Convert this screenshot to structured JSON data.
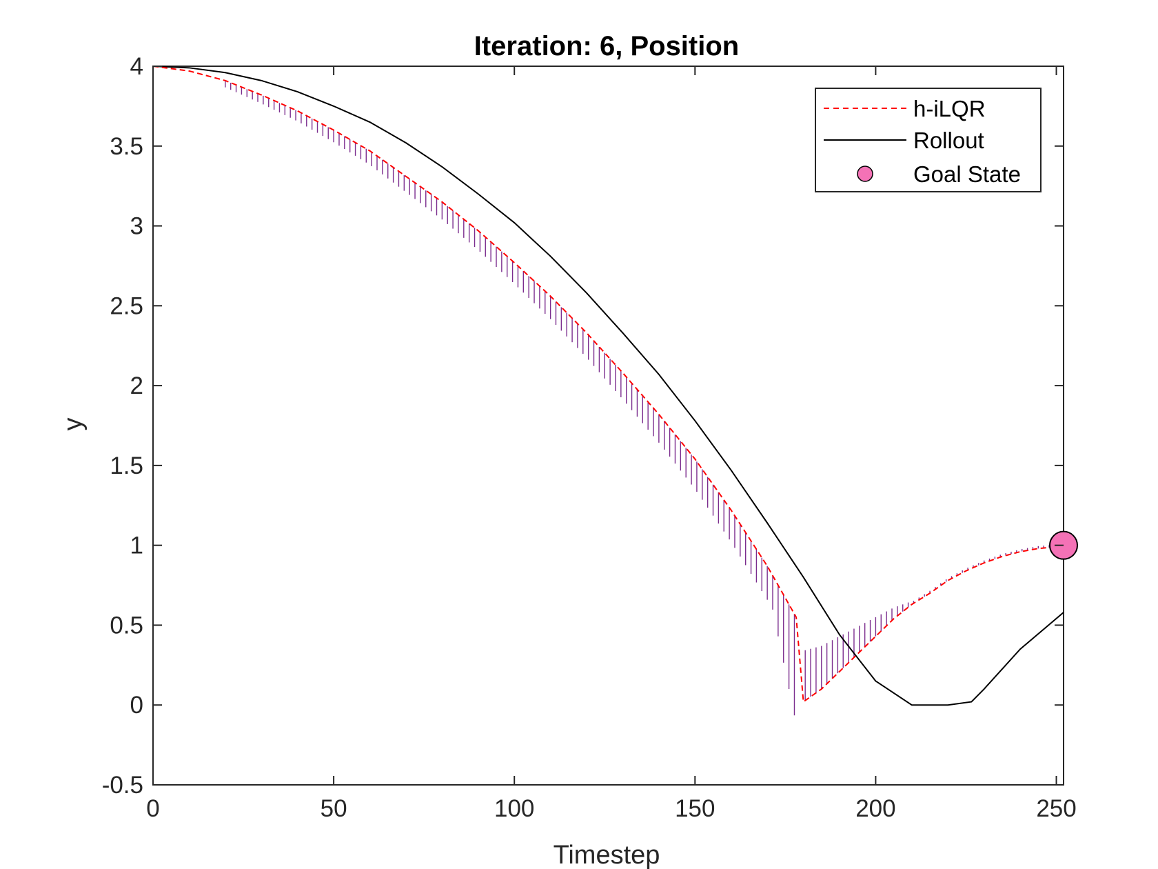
{
  "chart_data": {
    "type": "line",
    "title": "Iteration: 6, Position",
    "xlabel": "Timestep",
    "ylabel": "y",
    "xlim": [
      0,
      252
    ],
    "ylim": [
      -0.5,
      4
    ],
    "xticks": [
      0,
      50,
      100,
      150,
      200,
      250
    ],
    "yticks": [
      -0.5,
      0,
      0.5,
      1,
      1.5,
      2,
      2.5,
      3,
      3.5,
      4
    ],
    "ytick_labels": [
      "-0.5",
      "0",
      "0.5",
      "1",
      "1.5",
      "2",
      "2.5",
      "3",
      "3.5",
      "4"
    ],
    "legend_position": "top-right",
    "grid": false,
    "series": [
      {
        "name": "h-iLQR",
        "style": "dashed",
        "color": "#ff0000",
        "x": [
          0,
          10,
          20,
          30,
          40,
          50,
          60,
          70,
          80,
          90,
          100,
          110,
          120,
          130,
          140,
          150,
          160,
          170,
          178,
          180,
          185,
          190,
          195,
          200,
          205,
          210,
          215,
          220,
          225,
          230,
          235,
          240,
          245,
          250,
          252
        ],
        "y": [
          4.0,
          3.97,
          3.91,
          3.82,
          3.72,
          3.6,
          3.47,
          3.31,
          3.15,
          2.97,
          2.77,
          2.56,
          2.33,
          2.08,
          1.82,
          1.54,
          1.22,
          0.87,
          0.55,
          0.02,
          0.1,
          0.21,
          0.32,
          0.43,
          0.54,
          0.63,
          0.7,
          0.78,
          0.84,
          0.89,
          0.93,
          0.96,
          0.98,
          0.99,
          1.0
        ]
      },
      {
        "name": "Rollout",
        "style": "solid",
        "color": "#000000",
        "x": [
          0,
          10,
          20,
          30,
          40,
          50,
          60,
          70,
          80,
          90,
          100,
          110,
          120,
          130,
          140,
          150,
          160,
          170,
          180,
          190,
          200,
          210,
          220,
          226.5,
          230,
          240,
          252
        ],
        "y": [
          4.0,
          3.99,
          3.96,
          3.91,
          3.84,
          3.75,
          3.65,
          3.52,
          3.37,
          3.2,
          3.02,
          2.81,
          2.58,
          2.33,
          2.07,
          1.78,
          1.47,
          1.14,
          0.8,
          0.44,
          0.15,
          0.0,
          0.0,
          0.02,
          0.1,
          0.35,
          0.58
        ]
      },
      {
        "name": "Goal State",
        "style": "marker",
        "color": "#f472b6",
        "x": [
          252
        ],
        "y": [
          1.0
        ]
      }
    ],
    "hatch_color": "#7b2d8e"
  }
}
